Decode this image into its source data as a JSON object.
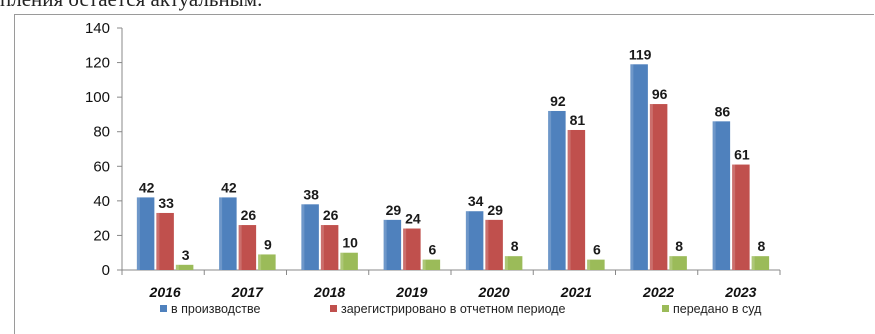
{
  "document": {
    "text_above": "пления остается актуальным."
  },
  "chart_data": {
    "type": "bar",
    "categories": [
      "2016",
      "2017",
      "2018",
      "2019",
      "2020",
      "2021",
      "2022",
      "2023"
    ],
    "series": [
      {
        "name": "в производстве",
        "color": "#4F81BD",
        "values": [
          42,
          42,
          38,
          29,
          34,
          92,
          119,
          86
        ]
      },
      {
        "name": "зарегистрировано в отчетном периоде",
        "color": "#C0504D",
        "values": [
          33,
          26,
          26,
          24,
          29,
          81,
          96,
          61
        ]
      },
      {
        "name": "передано в суд",
        "color": "#9BBB59",
        "values": [
          3,
          9,
          10,
          6,
          8,
          6,
          8,
          8
        ]
      }
    ],
    "ylim": [
      0,
      140
    ],
    "yticks": [
      0,
      20,
      40,
      60,
      80,
      100,
      120,
      140
    ],
    "grid": false,
    "legend_position": "bottom",
    "xlabel": "",
    "ylabel": "",
    "title": ""
  }
}
